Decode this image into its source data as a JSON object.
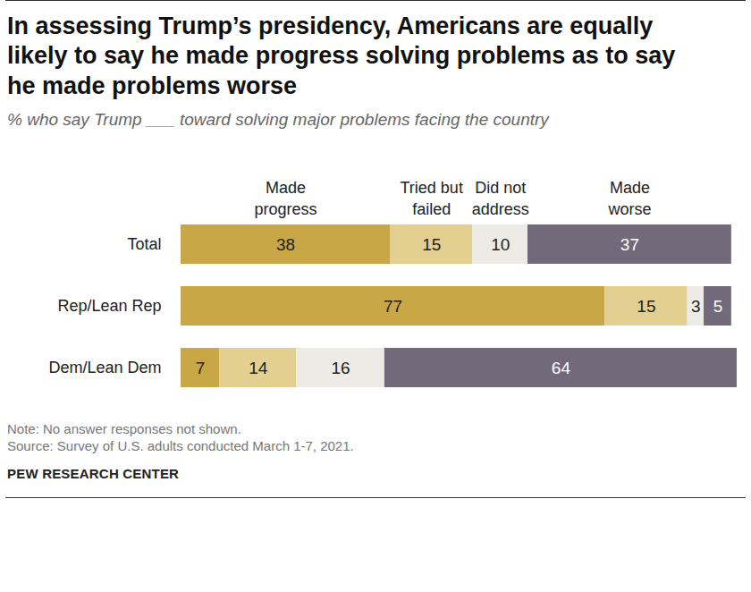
{
  "chart_data": {
    "type": "bar",
    "orientation": "horizontal",
    "stacked": true,
    "data_labels": true,
    "tick_labels": "y",
    "title": "In assessing Trump’s presidency, Americans are equally likely to say he made progress solving problems as to say he made problems worse",
    "subtitle": "% who say Trump ___ toward solving major problems facing the country",
    "categories": [
      "Total",
      "Rep/Lean Rep",
      "Dem/Lean Dem"
    ],
    "series": [
      {
        "name": "Made progress",
        "color": "#c9a646",
        "values": [
          38,
          77,
          7
        ]
      },
      {
        "name": "Tried but failed",
        "color": "#e3cf8f",
        "values": [
          15,
          15,
          14
        ]
      },
      {
        "name": "Did not address",
        "color": "#ecebe6",
        "values": [
          10,
          3,
          16
        ]
      },
      {
        "name": "Made worse",
        "color": "#726a7b",
        "values": [
          37,
          5,
          64
        ]
      }
    ],
    "xlim": [
      0,
      101
    ],
    "xticks": [],
    "note": "Note: No answer responses not shown.",
    "source": "Source: Survey of U.S. adults conducted March 1-7, 2021.",
    "credit": "PEW RESEARCH CENTER"
  }
}
